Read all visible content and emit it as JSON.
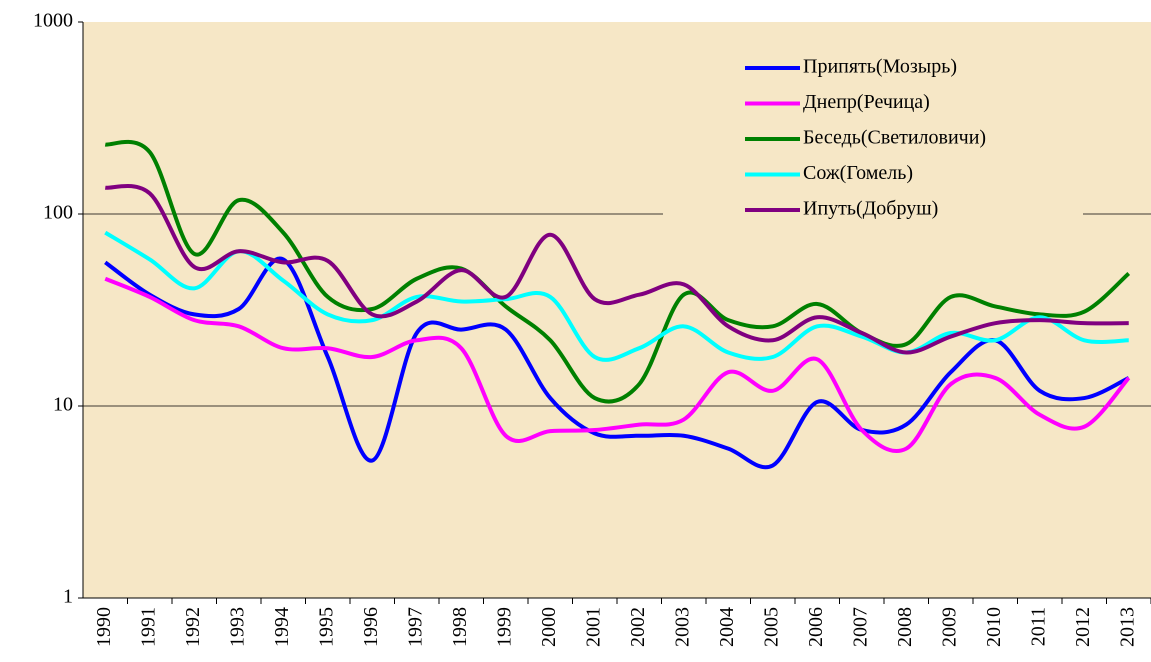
{
  "chart_data": {
    "type": "line",
    "log_scale": true,
    "grid": true,
    "legend": "upper right",
    "categories": [
      "1990",
      "1991",
      "1992",
      "1993",
      "1994",
      "1995",
      "1996",
      "1997",
      "1998",
      "1999",
      "2000",
      "2001",
      "2002",
      "2003",
      "2004",
      "2005",
      "2006",
      "2007",
      "2008",
      "2009",
      "2010",
      "2011",
      "2012",
      "2013"
    ],
    "ylim": [
      1,
      1000
    ],
    "yticks": [
      1,
      10,
      100,
      1000
    ],
    "series": [
      {
        "name": "Припять(Мозырь)",
        "color": "#0000ff",
        "values": [
          56,
          38,
          30,
          32,
          58,
          18,
          5.2,
          24,
          25,
          25,
          11,
          7.2,
          7,
          7,
          6,
          4.9,
          10.5,
          7.5,
          8,
          15,
          22,
          12,
          11,
          14
        ]
      },
      {
        "name": "Днепр(Речица)",
        "color": "#ff00ff",
        "values": [
          46,
          37,
          28,
          26,
          20,
          20,
          18,
          22,
          20,
          7,
          7.4,
          7.5,
          8,
          8.5,
          15,
          12,
          17.5,
          7.5,
          6,
          13,
          14,
          9,
          7.8,
          14
        ]
      },
      {
        "name": "Беседь(Светиловичи)",
        "color": "#008000",
        "values": [
          230,
          210,
          62,
          118,
          80,
          37,
          32,
          46,
          52,
          33,
          22,
          11,
          13,
          38,
          28,
          26,
          34,
          24,
          21,
          37,
          33,
          30,
          31,
          49
        ]
      },
      {
        "name": "Сож(Гомель)",
        "color": "#00ffff",
        "values": [
          80,
          58,
          41,
          64,
          45,
          30,
          28,
          37,
          35,
          36,
          37,
          18,
          20,
          26,
          19,
          18,
          26,
          23,
          19,
          24,
          22,
          29,
          22,
          22
        ]
      },
      {
        "name": "Ипуть(Добруш)",
        "color": "#800080",
        "values": [
          137,
          128,
          53,
          64,
          56,
          57,
          30,
          35,
          51,
          37,
          78,
          36,
          38,
          43,
          26,
          22,
          29,
          24,
          19,
          23,
          27,
          28,
          27,
          27
        ]
      }
    ]
  }
}
